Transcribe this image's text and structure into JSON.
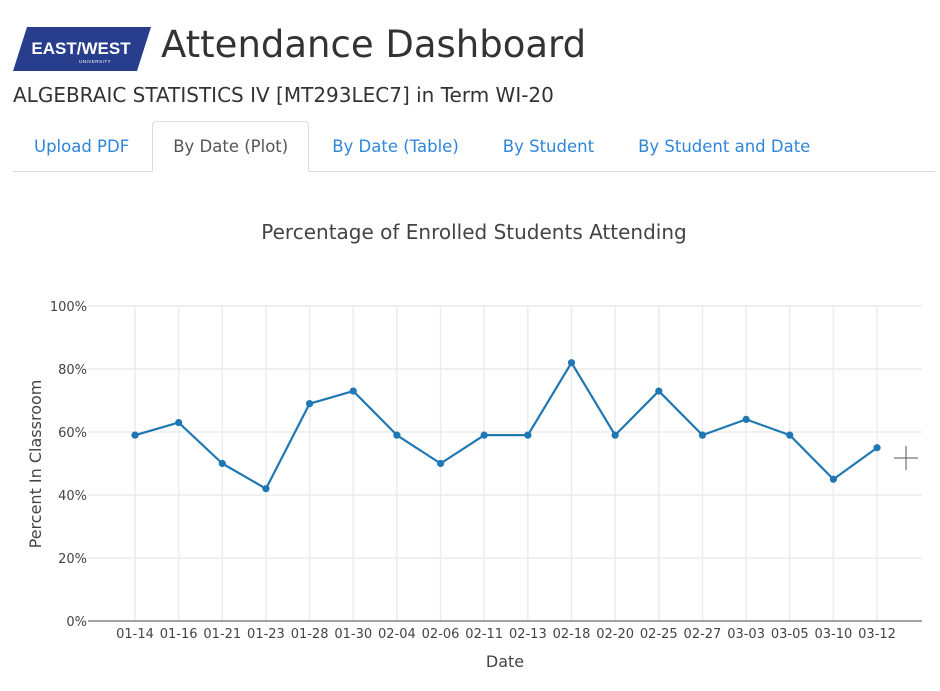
{
  "header": {
    "logo_text": "EAST/WEST",
    "logo_subtext": "UNIVERSITY",
    "title": "Attendance Dashboard",
    "course_line": "ALGEBRAIC STATISTICS IV [MT293LEC7] in Term WI-20"
  },
  "tabs": [
    {
      "label": "Upload PDF",
      "active": false
    },
    {
      "label": "By Date (Plot)",
      "active": true
    },
    {
      "label": "By Date (Table)",
      "active": false
    },
    {
      "label": "By Student",
      "active": false
    },
    {
      "label": "By Student and Date",
      "active": false
    }
  ],
  "colors": {
    "logo_bg": "#283d8c",
    "tab_link": "#2f86d9",
    "series_line": "#1f77b4"
  },
  "chart_data": {
    "type": "line",
    "title": "Percentage of Enrolled Students Attending",
    "xlabel": "Date",
    "ylabel": "Percent In Classroom",
    "categories": [
      "01-14",
      "01-16",
      "01-21",
      "01-23",
      "01-28",
      "01-30",
      "02-04",
      "02-06",
      "02-11",
      "02-13",
      "02-18",
      "02-20",
      "02-25",
      "02-27",
      "03-03",
      "03-05",
      "03-10",
      "03-12"
    ],
    "series": [
      {
        "values": [
          59,
          63,
          50,
          42,
          69,
          73,
          59,
          50,
          59,
          59,
          82,
          59,
          73,
          59,
          64,
          59,
          45,
          55
        ]
      }
    ],
    "ylim": [
      0,
      100
    ],
    "yticks": [
      0,
      20,
      40,
      60,
      80,
      100
    ],
    "ytick_labels": [
      "0%",
      "20%",
      "40%",
      "60%",
      "80%",
      "100%"
    ],
    "grid": true,
    "legend": "none"
  }
}
